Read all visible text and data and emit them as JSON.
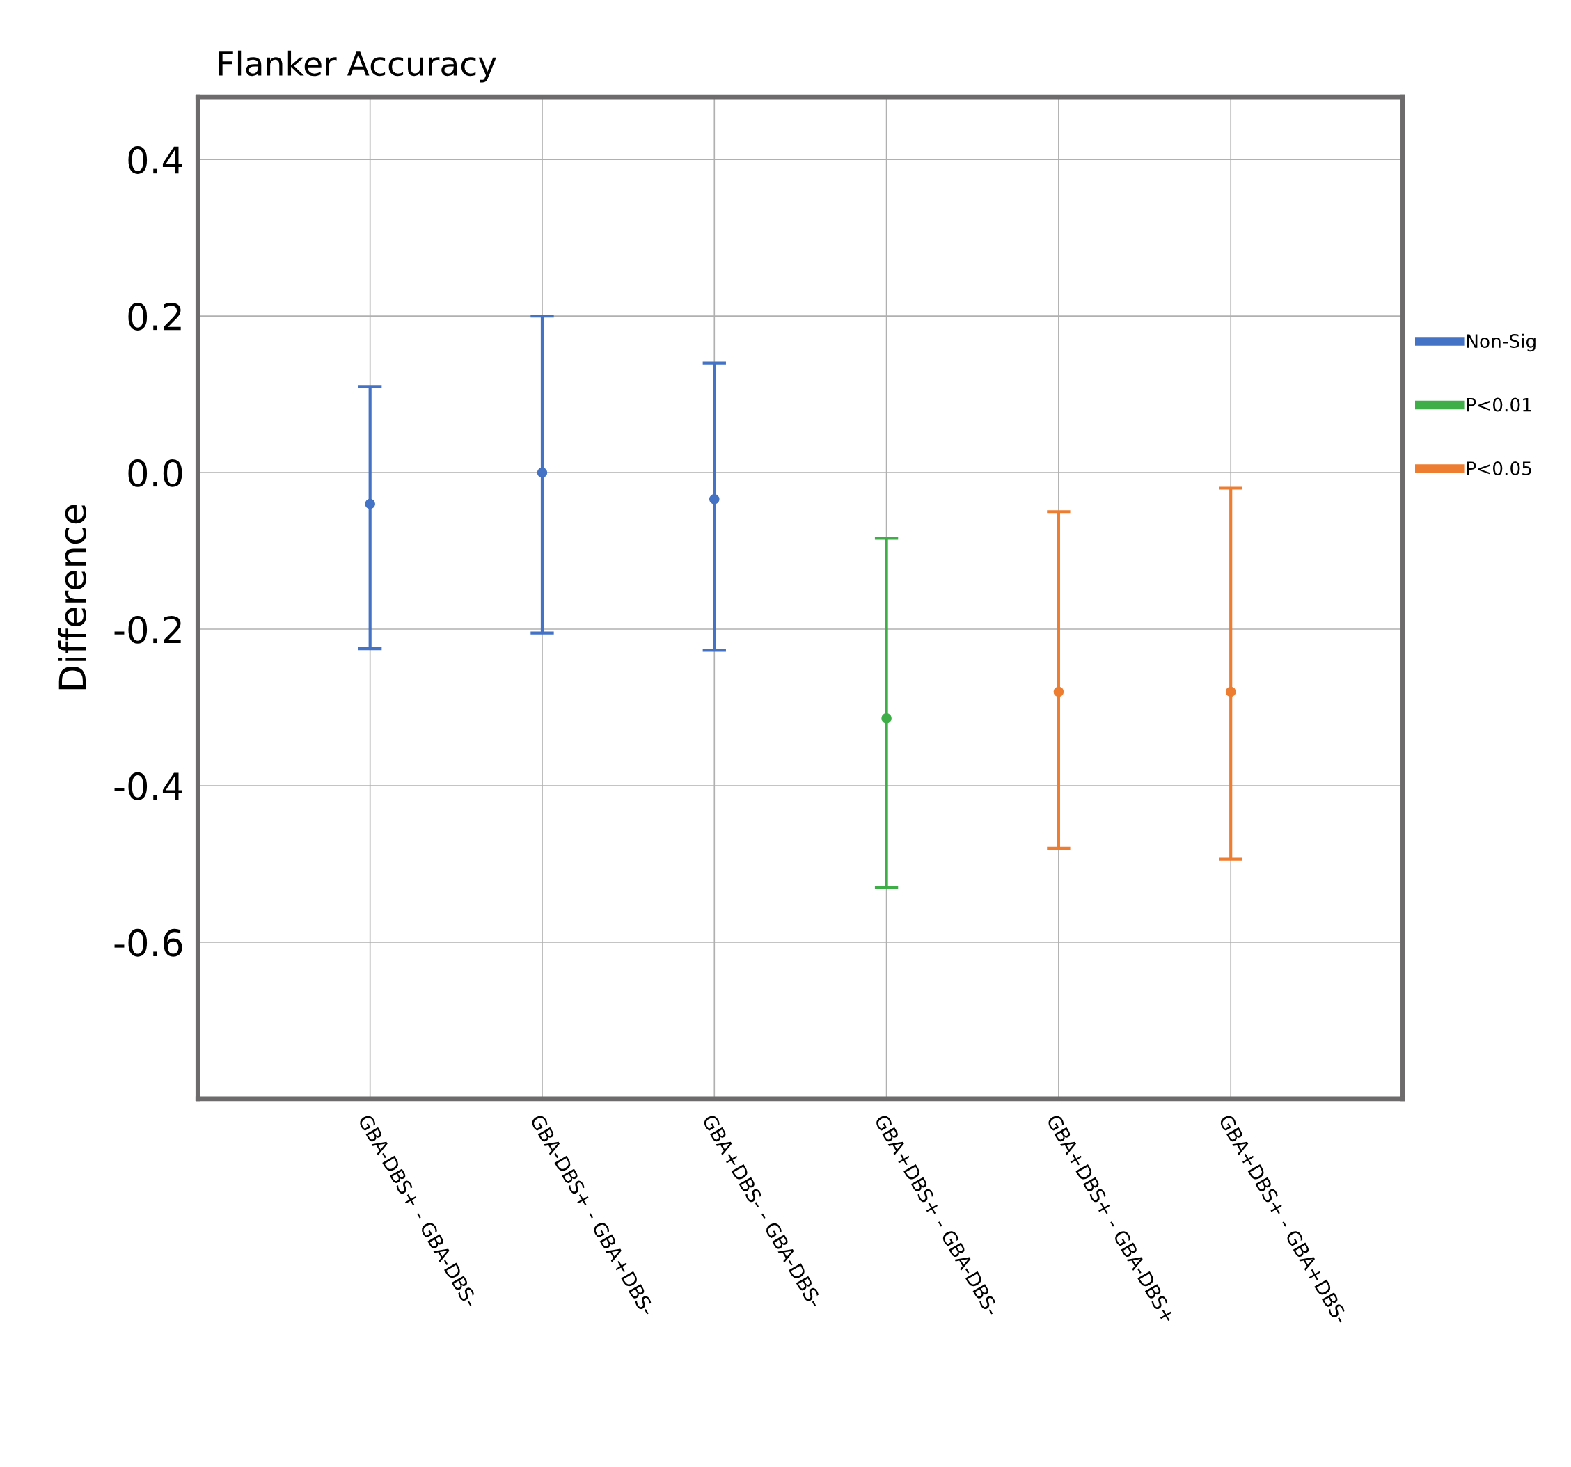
{
  "chart_data": {
    "type": "scatter",
    "title": "Flanker Accuracy",
    "ylabel": "Difference",
    "categories": [
      "GBA-DBS+ - GBA-DBS-",
      "GBA-DBS+ - GBA+DBS-",
      "GBA+DBS- - GBA-DBS-",
      "GBA+DBS+ - GBA-DBS-",
      "GBA+DBS+ - GBA-DBS+",
      "GBA+DBS+ - GBA+DBS-"
    ],
    "series": [
      {
        "name": "Non-Sig",
        "color": "#4472c4",
        "values": [
          -0.04,
          0.0,
          -0.034,
          null,
          null,
          null
        ],
        "errors": [
          [
            -0.225,
            0.11
          ],
          [
            -0.205,
            0.2
          ],
          [
            -0.227,
            0.14
          ],
          null,
          null,
          null
        ]
      },
      {
        "name": "P<0.01",
        "color": "#3fae49",
        "values": [
          null,
          null,
          null,
          -0.314,
          null,
          null
        ],
        "errors": [
          null,
          null,
          null,
          [
            -0.53,
            -0.084
          ],
          null,
          null
        ]
      },
      {
        "name": "P<0.05",
        "color": "#ed7d31",
        "values": [
          null,
          null,
          null,
          null,
          -0.28,
          -0.28
        ],
        "errors": [
          null,
          null,
          null,
          null,
          [
            -0.48,
            -0.05
          ],
          [
            -0.494,
            -0.02
          ]
        ]
      }
    ],
    "ylim": [
      -0.8,
      0.48
    ],
    "yticks": [
      {
        "value": 0.4,
        "label": "0.4"
      },
      {
        "value": 0.2,
        "label": "0.2"
      },
      {
        "value": 0.0,
        "label": "0.0"
      },
      {
        "value": -0.2,
        "label": "-0.2"
      },
      {
        "value": -0.4,
        "label": "-0.4"
      },
      {
        "value": -0.6,
        "label": "-0.6"
      }
    ],
    "grid": true,
    "legend": "right",
    "marker": "circle"
  }
}
